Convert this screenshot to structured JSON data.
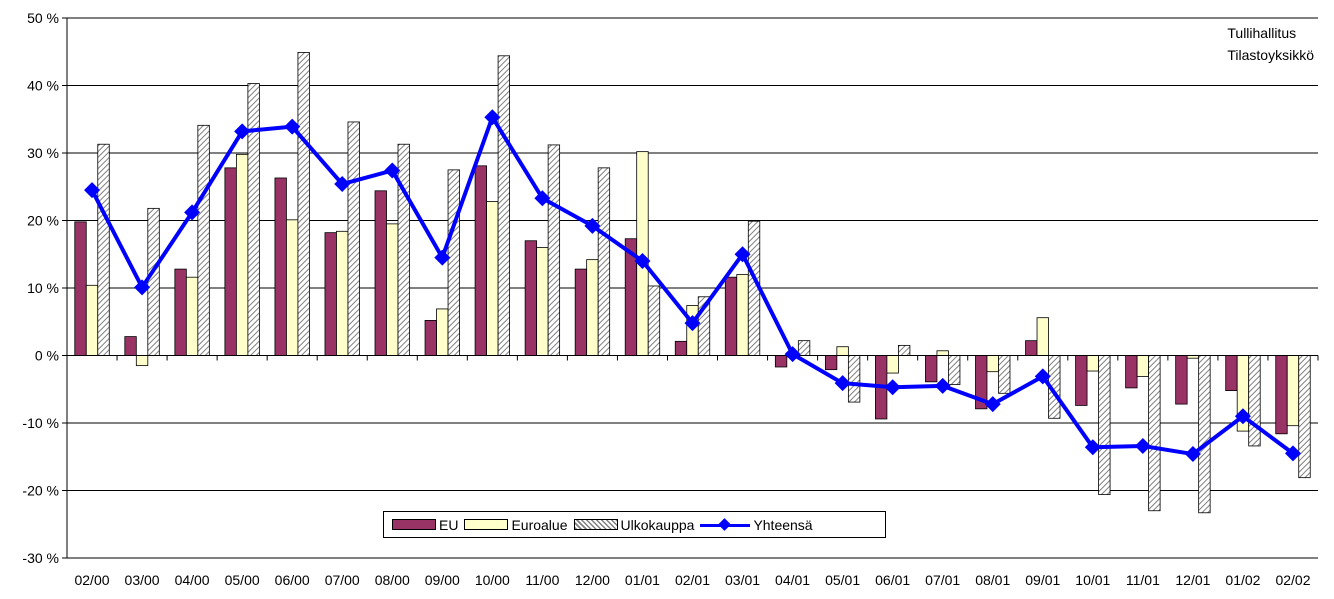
{
  "chart_data": {
    "type": "bar",
    "note": [
      "Tullihallitus",
      "Tilastoyksikkö"
    ],
    "categories": [
      "02/00",
      "03/00",
      "04/00",
      "05/00",
      "06/00",
      "07/00",
      "08/00",
      "09/00",
      "10/00",
      "11/00",
      "12/00",
      "01/01",
      "02/01",
      "03/01",
      "04/01",
      "05/01",
      "06/01",
      "07/01",
      "08/01",
      "09/01",
      "10/01",
      "11/01",
      "12/01",
      "01/02",
      "02/02"
    ],
    "yticks": [
      "50 %",
      "40 %",
      "30 %",
      "20 %",
      "10 %",
      "0 %",
      "-10 %",
      "-20 %",
      "-30 %"
    ],
    "ylim": [
      -30,
      50
    ],
    "grid": true,
    "legend_placement": "bottom-center",
    "series": [
      {
        "name": "EU",
        "kind": "bar",
        "color": "#993366",
        "values": [
          19.8,
          2.8,
          12.8,
          27.8,
          26.3,
          18.2,
          24.4,
          5.2,
          28.1,
          17.0,
          12.8,
          17.3,
          2.1,
          11.6,
          -1.7,
          -2.1,
          -9.4,
          -3.9,
          -7.9,
          2.2,
          -7.4,
          -4.8,
          -7.2,
          -5.2,
          -11.6
        ]
      },
      {
        "name": "Euroalue",
        "kind": "bar",
        "color": "#ffffcc",
        "values": [
          10.4,
          -1.5,
          11.6,
          29.8,
          20.1,
          18.4,
          19.5,
          6.9,
          22.8,
          16.0,
          14.2,
          30.2,
          7.4,
          12.0,
          -0.2,
          1.3,
          -2.6,
          0.7,
          -2.4,
          5.6,
          -2.3,
          -3.1,
          -0.4,
          -11.2,
          -10.4
        ]
      },
      {
        "name": "Ulkokauppa",
        "kind": "bar",
        "color": "#c0c0c0",
        "pattern": "hatched",
        "values": [
          31.3,
          21.8,
          34.1,
          40.3,
          44.9,
          34.6,
          31.3,
          27.5,
          44.4,
          31.2,
          27.8,
          10.3,
          8.7,
          19.9,
          2.2,
          -6.9,
          1.5,
          -4.3,
          -5.6,
          -9.3,
          -20.6,
          -23.0,
          -23.3,
          -13.4,
          -18.1
        ]
      },
      {
        "name": "Yhteensä",
        "kind": "line",
        "color": "#0000ff",
        "values": [
          24.5,
          10.1,
          21.2,
          33.2,
          33.9,
          25.4,
          27.4,
          14.5,
          35.3,
          23.3,
          19.2,
          14.0,
          4.8,
          15.0,
          0.2,
          -4.1,
          -4.7,
          -4.5,
          -7.2,
          -3.1,
          -13.6,
          -13.4,
          -14.6,
          -9.0,
          -14.5
        ]
      }
    ]
  }
}
